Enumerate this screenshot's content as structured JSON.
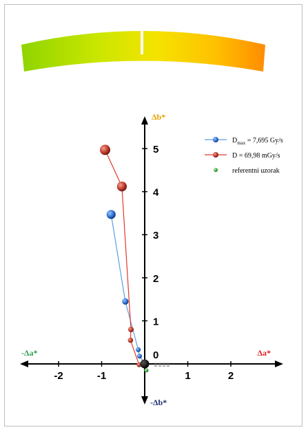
{
  "chart_data": {
    "type": "scatter",
    "title": "",
    "axes": {
      "x_positive_label": "Δa*",
      "x_negative_label": "-Δa*",
      "y_positive_label": "Δb*",
      "y_negative_label": "-Δb*",
      "x_ticks": [
        "-2",
        "-1",
        "1",
        "2"
      ],
      "y_ticks": [
        "1",
        "2",
        "3",
        "4",
        "5"
      ],
      "y_zero_label": "0",
      "xlim": [
        -2.7,
        2.8
      ],
      "ylim": [
        -0.75,
        5.6
      ]
    },
    "legend_position": "top-right",
    "series": [
      {
        "name": "Dmax = 7,695 Gy/s",
        "label_main": "D",
        "label_sub": "max",
        "label_rest": " = 7,695 Gy/s",
        "color": "#2f6fd0",
        "line_color": "#5a9fe0",
        "connected": true,
        "points": [
          [
            0,
            0
          ],
          [
            -0.12,
            0.18
          ],
          [
            -0.15,
            0.33
          ],
          [
            -0.45,
            1.45
          ],
          [
            -0.78,
            3.47
          ]
        ]
      },
      {
        "name": "D = 69,98 mGy/s",
        "label_main": "D",
        "label_sub": "",
        "label_rest": "  = 69,98 mGy/s",
        "color": "#c0392b",
        "line_color": "#e0392b",
        "connected": true,
        "points": [
          [
            0,
            0
          ],
          [
            -0.13,
            -0.02
          ],
          [
            -0.33,
            0.55
          ],
          [
            -0.32,
            0.8
          ],
          [
            -0.53,
            4.12
          ],
          [
            -0.92,
            4.97
          ]
        ]
      },
      {
        "name": "referentni uzorak",
        "label_main": "referentni uzorak",
        "label_sub": "",
        "label_rest": "",
        "color": "#4caf50",
        "line_color": "",
        "connected": false,
        "points": [
          [
            0.04,
            -0.15
          ]
        ]
      }
    ],
    "origin_marker_color": "#000000",
    "color_bar": {
      "gradient_colors": [
        "#8fd400",
        "#c8e600",
        "#f4e400",
        "#ffc000",
        "#ff8c00"
      ]
    }
  }
}
